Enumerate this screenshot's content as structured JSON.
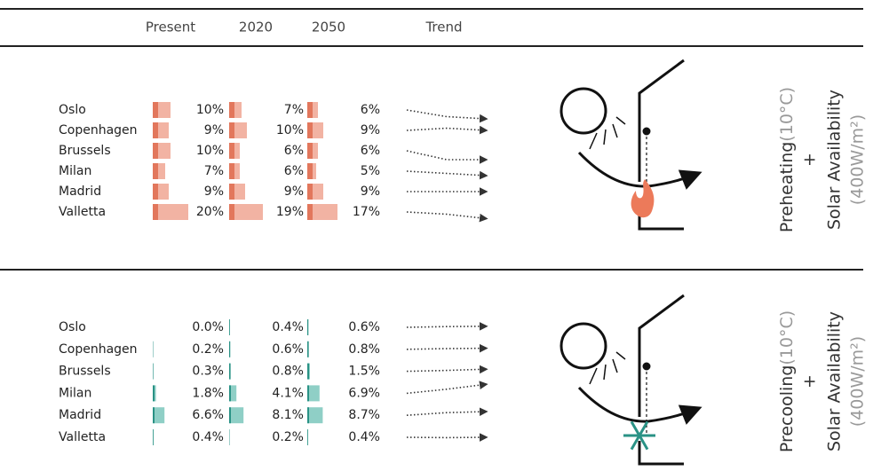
{
  "header": {
    "columns": [
      "Present",
      "2020",
      "2050",
      "Trend"
    ]
  },
  "sections": [
    {
      "rows": [
        {
          "city": "Oslo",
          "values": [
            10,
            7,
            6
          ],
          "value_labels": [
            "10%",
            "7%",
            "6%"
          ]
        },
        {
          "city": "Copenhagen",
          "values": [
            9,
            10,
            9
          ],
          "value_labels": [
            "9%",
            "10%",
            "9%"
          ]
        },
        {
          "city": "Brussels",
          "values": [
            10,
            6,
            6
          ],
          "value_labels": [
            "10%",
            "6%",
            "6%"
          ]
        },
        {
          "city": "Milan",
          "values": [
            7,
            6,
            5
          ],
          "value_labels": [
            "7%",
            "6%",
            "5%"
          ]
        },
        {
          "city": "Madrid",
          "values": [
            9,
            9,
            9
          ],
          "value_labels": [
            "9%",
            "9%",
            "9%"
          ]
        },
        {
          "city": "Valletta",
          "values": [
            20,
            19,
            17
          ],
          "value_labels": [
            "20%",
            "19%",
            "17%"
          ]
        }
      ],
      "color": "#f2b3a3",
      "accent": "#e2775c",
      "side": {
        "mode": "Preheating",
        "condition": "(10°C)",
        "plus": "+",
        "availability": "Solar Availability",
        "irradiance": "(400W/m²)"
      }
    },
    {
      "rows": [
        {
          "city": "Oslo",
          "values": [
            0.0,
            0.4,
            0.6
          ],
          "value_labels": [
            "0.0%",
            "0.4%",
            "0.6%"
          ]
        },
        {
          "city": "Copenhagen",
          "values": [
            0.2,
            0.6,
            0.8
          ],
          "value_labels": [
            "0.2%",
            "0.6%",
            "0.8%"
          ]
        },
        {
          "city": "Brussels",
          "values": [
            0.3,
            0.8,
            1.5
          ],
          "value_labels": [
            "0.3%",
            "0.8%",
            "1.5%"
          ]
        },
        {
          "city": "Milan",
          "values": [
            1.8,
            4.1,
            6.9
          ],
          "value_labels": [
            "1.8%",
            "4.1%",
            "6.9%"
          ]
        },
        {
          "city": "Madrid",
          "values": [
            6.6,
            8.1,
            8.7
          ],
          "value_labels": [
            "6.6%",
            "8.1%",
            "8.7%"
          ]
        },
        {
          "city": "Valletta",
          "values": [
            0.4,
            0.2,
            0.4
          ],
          "value_labels": [
            "0.4%",
            "0.2%",
            "0.4%"
          ]
        }
      ],
      "color": "#8fcfc6",
      "accent": "#2a9285",
      "side": {
        "mode": "Precooling",
        "condition": "(10°C)",
        "plus": "+",
        "availability": "Solar Availability",
        "irradiance": "(400W/m²)"
      }
    }
  ]
}
